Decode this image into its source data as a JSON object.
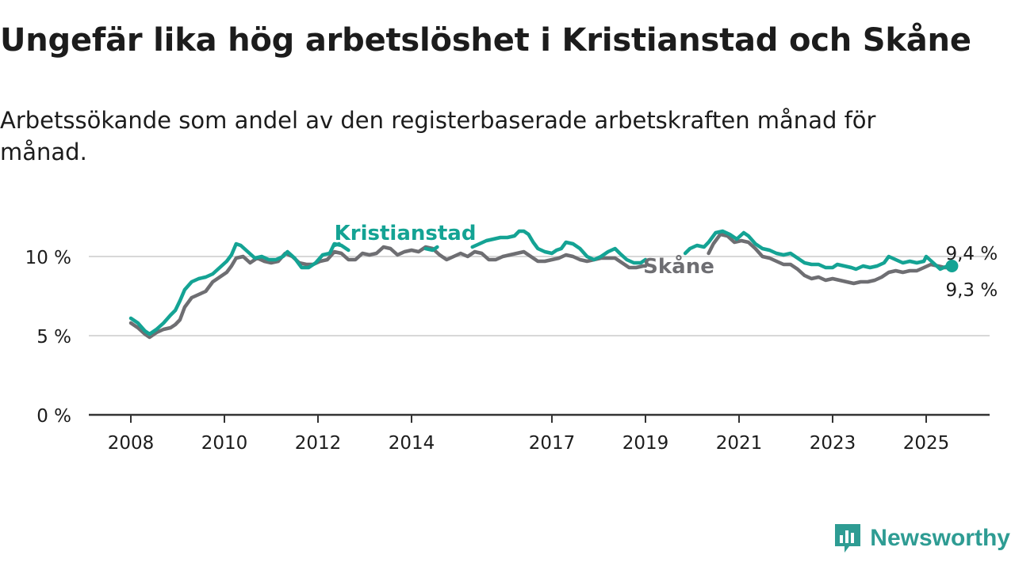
{
  "title": "Ungefär lika hög arbetslöshet i Kristianstad och Skåne",
  "subtitle": "Arbetssökande som andel av den registerbaserade arbetskraften månad för månad.",
  "brand": "Newsworthy",
  "colors": {
    "kristianstad": "#14a394",
    "skane": "#6e6e72",
    "grid": "#d8d8d8",
    "axis": "#333333",
    "brand": "#2e9c93"
  },
  "chart_data": {
    "type": "line",
    "ylim": [
      0,
      12
    ],
    "xlim": [
      2008,
      2026.4
    ],
    "y_ticks": [
      {
        "value": 0,
        "label": "0 %"
      },
      {
        "value": 5,
        "label": "5 %"
      },
      {
        "value": 10,
        "label": "10 %"
      }
    ],
    "x_ticks": [
      {
        "value": 2008,
        "label": "2008"
      },
      {
        "value": 2010,
        "label": "2010"
      },
      {
        "value": 2012,
        "label": "2012"
      },
      {
        "value": 2014,
        "label": "2014"
      },
      {
        "value": 2017,
        "label": "2017"
      },
      {
        "value": 2019,
        "label": "2019"
      },
      {
        "value": 2021,
        "label": "2021"
      },
      {
        "value": 2023,
        "label": "2023"
      },
      {
        "value": 2025,
        "label": "2025"
      }
    ],
    "grid": true,
    "series": [
      {
        "name": "Kristianstad",
        "color": "#14a394",
        "end_label": "9,4 %",
        "segments": [
          [
            [
              2008.0,
              6.1
            ],
            [
              2008.15,
              5.8
            ],
            [
              2008.3,
              5.3
            ],
            [
              2008.4,
              5.1
            ],
            [
              2008.55,
              5.4
            ],
            [
              2008.7,
              5.8
            ],
            [
              2008.85,
              6.3
            ],
            [
              2008.95,
              6.6
            ],
            [
              2009.05,
              7.2
            ],
            [
              2009.15,
              7.9
            ],
            [
              2009.3,
              8.4
            ],
            [
              2009.45,
              8.6
            ],
            [
              2009.6,
              8.7
            ],
            [
              2009.75,
              8.9
            ],
            [
              2009.9,
              9.3
            ],
            [
              2010.05,
              9.7
            ],
            [
              2010.15,
              10.1
            ],
            [
              2010.25,
              10.8
            ],
            [
              2010.35,
              10.7
            ],
            [
              2010.5,
              10.3
            ],
            [
              2010.65,
              9.9
            ],
            [
              2010.8,
              10.0
            ],
            [
              2010.95,
              9.8
            ],
            [
              2011.1,
              9.8
            ],
            [
              2011.25,
              10.0
            ],
            [
              2011.35,
              10.3
            ],
            [
              2011.5,
              9.9
            ],
            [
              2011.65,
              9.3
            ],
            [
              2011.8,
              9.3
            ],
            [
              2011.95,
              9.6
            ],
            [
              2012.1,
              10.1
            ],
            [
              2012.25,
              10.2
            ],
            [
              2012.35,
              10.8
            ],
            [
              2012.5,
              10.7
            ],
            [
              2012.65,
              10.4
            ]
          ],
          [
            [
              2012.35,
              10.7
            ],
            [
              2012.45,
              10.8
            ]
          ],
          [
            [
              2014.3,
              10.5
            ],
            [
              2014.45,
              10.4
            ],
            [
              2014.55,
              10.6
            ]
          ],
          [
            [
              2015.3,
              10.6
            ],
            [
              2015.45,
              10.8
            ],
            [
              2015.6,
              11.0
            ],
            [
              2015.75,
              11.1
            ],
            [
              2015.9,
              11.2
            ],
            [
              2016.05,
              11.2
            ],
            [
              2016.2,
              11.3
            ],
            [
              2016.3,
              11.6
            ],
            [
              2016.4,
              11.6
            ],
            [
              2016.5,
              11.4
            ],
            [
              2016.6,
              10.9
            ],
            [
              2016.7,
              10.5
            ],
            [
              2016.85,
              10.3
            ],
            [
              2017.0,
              10.2
            ],
            [
              2017.1,
              10.4
            ],
            [
              2017.2,
              10.5
            ],
            [
              2017.3,
              10.9
            ],
            [
              2017.45,
              10.8
            ],
            [
              2017.6,
              10.5
            ],
            [
              2017.75,
              10.0
            ],
            [
              2017.9,
              9.8
            ],
            [
              2018.05,
              10.0
            ],
            [
              2018.2,
              10.3
            ],
            [
              2018.35,
              10.5
            ],
            [
              2018.45,
              10.2
            ],
            [
              2018.6,
              9.8
            ],
            [
              2018.75,
              9.6
            ],
            [
              2018.9,
              9.6
            ],
            [
              2019.0,
              9.8
            ]
          ],
          [
            [
              2019.85,
              10.2
            ],
            [
              2019.95,
              10.5
            ],
            [
              2020.1,
              10.7
            ],
            [
              2020.25,
              10.6
            ],
            [
              2020.35,
              10.9
            ],
            [
              2020.5,
              11.5
            ],
            [
              2020.65,
              11.6
            ],
            [
              2020.8,
              11.4
            ],
            [
              2020.95,
              11.1
            ],
            [
              2021.1,
              11.5
            ],
            [
              2021.2,
              11.3
            ],
            [
              2021.35,
              10.8
            ],
            [
              2021.5,
              10.5
            ],
            [
              2021.65,
              10.4
            ],
            [
              2021.8,
              10.2
            ],
            [
              2021.95,
              10.1
            ],
            [
              2022.1,
              10.2
            ],
            [
              2022.25,
              9.9
            ],
            [
              2022.4,
              9.6
            ],
            [
              2022.55,
              9.5
            ],
            [
              2022.7,
              9.5
            ],
            [
              2022.85,
              9.3
            ],
            [
              2023.0,
              9.3
            ],
            [
              2023.1,
              9.5
            ],
            [
              2023.25,
              9.4
            ],
            [
              2023.4,
              9.3
            ],
            [
              2023.5,
              9.2
            ],
            [
              2023.65,
              9.4
            ],
            [
              2023.8,
              9.3
            ],
            [
              2023.95,
              9.4
            ],
            [
              2024.1,
              9.6
            ],
            [
              2024.2,
              10.0
            ],
            [
              2024.35,
              9.8
            ],
            [
              2024.5,
              9.6
            ],
            [
              2024.65,
              9.7
            ],
            [
              2024.8,
              9.6
            ],
            [
              2024.95,
              9.7
            ],
            [
              2025.0,
              10.0
            ],
            [
              2025.15,
              9.6
            ],
            [
              2025.3,
              9.2
            ],
            [
              2025.45,
              9.4
            ],
            [
              2025.55,
              9.4
            ]
          ]
        ]
      },
      {
        "name": "Skåne",
        "color": "#6e6e72",
        "end_label": "9,3 %",
        "segments": [
          [
            [
              2008.0,
              5.8
            ],
            [
              2008.15,
              5.5
            ],
            [
              2008.3,
              5.1
            ],
            [
              2008.4,
              4.9
            ],
            [
              2008.55,
              5.2
            ],
            [
              2008.7,
              5.4
            ],
            [
              2008.85,
              5.5
            ],
            [
              2008.95,
              5.7
            ],
            [
              2009.05,
              6.0
            ],
            [
              2009.15,
              6.8
            ],
            [
              2009.3,
              7.4
            ],
            [
              2009.45,
              7.6
            ],
            [
              2009.6,
              7.8
            ],
            [
              2009.75,
              8.4
            ],
            [
              2009.9,
              8.7
            ],
            [
              2010.05,
              9.0
            ],
            [
              2010.15,
              9.4
            ],
            [
              2010.25,
              9.9
            ],
            [
              2010.4,
              10.0
            ],
            [
              2010.55,
              9.6
            ],
            [
              2010.7,
              9.9
            ],
            [
              2010.85,
              9.7
            ],
            [
              2011.0,
              9.6
            ],
            [
              2011.15,
              9.7
            ],
            [
              2011.3,
              10.2
            ],
            [
              2011.45,
              10.0
            ],
            [
              2011.6,
              9.6
            ],
            [
              2011.75,
              9.5
            ],
            [
              2011.9,
              9.5
            ],
            [
              2012.05,
              9.7
            ],
            [
              2012.2,
              9.8
            ],
            [
              2012.35,
              10.3
            ],
            [
              2012.5,
              10.2
            ],
            [
              2012.65,
              9.8
            ],
            [
              2012.8,
              9.8
            ],
            [
              2012.95,
              10.2
            ],
            [
              2013.1,
              10.1
            ],
            [
              2013.25,
              10.2
            ],
            [
              2013.4,
              10.6
            ],
            [
              2013.55,
              10.5
            ],
            [
              2013.7,
              10.1
            ],
            [
              2013.85,
              10.3
            ],
            [
              2014.0,
              10.4
            ],
            [
              2014.15,
              10.3
            ],
            [
              2014.3,
              10.6
            ],
            [
              2014.45,
              10.5
            ],
            [
              2014.6,
              10.1
            ],
            [
              2014.75,
              9.8
            ],
            [
              2014.9,
              10.0
            ],
            [
              2015.05,
              10.2
            ],
            [
              2015.2,
              10.0
            ],
            [
              2015.35,
              10.3
            ],
            [
              2015.5,
              10.2
            ],
            [
              2015.65,
              9.8
            ],
            [
              2015.8,
              9.8
            ],
            [
              2015.95,
              10.0
            ],
            [
              2016.1,
              10.1
            ],
            [
              2016.25,
              10.2
            ],
            [
              2016.4,
              10.3
            ],
            [
              2016.55,
              10.0
            ],
            [
              2016.7,
              9.7
            ],
            [
              2016.85,
              9.7
            ],
            [
              2017.0,
              9.8
            ],
            [
              2017.15,
              9.9
            ],
            [
              2017.3,
              10.1
            ],
            [
              2017.45,
              10.0
            ],
            [
              2017.6,
              9.8
            ],
            [
              2017.75,
              9.7
            ],
            [
              2017.9,
              9.8
            ],
            [
              2018.05,
              9.9
            ],
            [
              2018.2,
              9.9
            ],
            [
              2018.35,
              9.9
            ],
            [
              2018.5,
              9.6
            ],
            [
              2018.65,
              9.3
            ],
            [
              2018.8,
              9.3
            ],
            [
              2018.95,
              9.4
            ],
            [
              2019.0,
              9.4
            ]
          ],
          [
            [
              2020.35,
              10.2
            ],
            [
              2020.45,
              10.8
            ],
            [
              2020.6,
              11.4
            ],
            [
              2020.75,
              11.3
            ],
            [
              2020.9,
              10.9
            ],
            [
              2021.05,
              11.0
            ],
            [
              2021.2,
              10.9
            ],
            [
              2021.35,
              10.5
            ],
            [
              2021.5,
              10.0
            ],
            [
              2021.65,
              9.9
            ],
            [
              2021.8,
              9.7
            ],
            [
              2021.95,
              9.5
            ],
            [
              2022.1,
              9.5
            ],
            [
              2022.25,
              9.2
            ],
            [
              2022.4,
              8.8
            ],
            [
              2022.55,
              8.6
            ],
            [
              2022.7,
              8.7
            ],
            [
              2022.85,
              8.5
            ],
            [
              2023.0,
              8.6
            ],
            [
              2023.15,
              8.5
            ],
            [
              2023.3,
              8.4
            ],
            [
              2023.45,
              8.3
            ],
            [
              2023.6,
              8.4
            ],
            [
              2023.75,
              8.4
            ],
            [
              2023.9,
              8.5
            ],
            [
              2024.05,
              8.7
            ],
            [
              2024.2,
              9.0
            ],
            [
              2024.35,
              9.1
            ],
            [
              2024.5,
              9.0
            ],
            [
              2024.65,
              9.1
            ],
            [
              2024.8,
              9.1
            ],
            [
              2024.95,
              9.3
            ],
            [
              2025.1,
              9.5
            ],
            [
              2025.25,
              9.4
            ],
            [
              2025.4,
              9.3
            ],
            [
              2025.55,
              9.3
            ]
          ]
        ]
      }
    ],
    "annotations": [
      {
        "text": "Kristianstad",
        "series": "Kristianstad",
        "at": [
          2012.35,
          11.55
        ]
      },
      {
        "text": "Skåne",
        "series": "Skåne",
        "at": [
          2018.85,
          9.45
        ]
      }
    ]
  }
}
